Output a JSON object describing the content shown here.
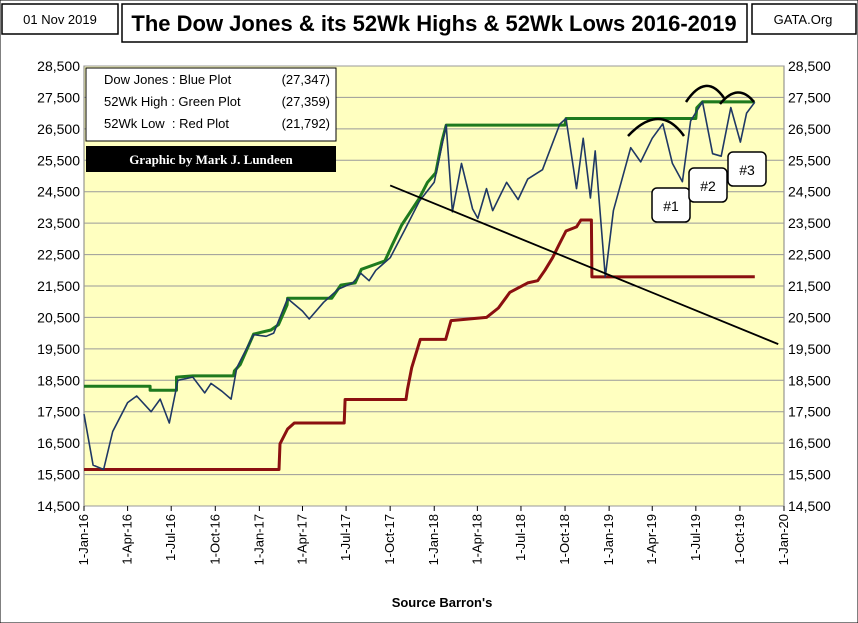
{
  "header": {
    "date": "01 Nov 2019",
    "title": "The Dow Jones & its 52Wk Highs & 52Wk Lows 2016-2019",
    "source": "GATA.Org"
  },
  "legend": {
    "rows": [
      {
        "label": "Dow Jones : Blue Plot",
        "value": "(27,347)"
      },
      {
        "label": "52Wk High : Green Plot",
        "value": "(27,359)"
      },
      {
        "label": "52Wk Low  : Red Plot",
        "value": "(21,792)"
      }
    ],
    "credit": "Graphic by Mark J. Lundeen"
  },
  "annotations": {
    "marker1": "#1",
    "marker2": "#2",
    "marker3": "#3"
  },
  "colors": {
    "plot_bg": "#ffffc0",
    "dow": "#1f3864",
    "high": "#1e7a1e",
    "low": "#8b1010",
    "trend": "#000000",
    "credit_bg": "#000000",
    "credit_fg": "#ffffff"
  },
  "chart_data": {
    "type": "line",
    "title": "The Dow Jones & its 52Wk Highs & 52Wk Lows 2016-2019",
    "xlabel": "Source Barron's",
    "ylabel": "",
    "ylim": [
      14500,
      28500
    ],
    "yticks": [
      "14,500",
      "15,500",
      "16,500",
      "17,500",
      "18,500",
      "19,500",
      "20,500",
      "21,500",
      "22,500",
      "23,500",
      "24,500",
      "25,500",
      "26,500",
      "27,500",
      "28,500"
    ],
    "xticks": [
      "1-Jan-16",
      "1-Apr-16",
      "1-Jul-16",
      "1-Oct-16",
      "1-Jan-17",
      "1-Apr-17",
      "1-Jul-17",
      "1-Oct-17",
      "1-Jan-18",
      "1-Apr-18",
      "1-Jul-18",
      "1-Oct-18",
      "1-Jan-19",
      "1-Apr-19",
      "1-Jul-19",
      "1-Oct-19",
      "1-Jan-20"
    ],
    "grid": true,
    "series": [
      {
        "name": "Dow Jones",
        "points": [
          [
            "2016-01-01",
            17425
          ],
          [
            "2016-01-20",
            15800
          ],
          [
            "2016-02-11",
            15660
          ],
          [
            "2016-03-01",
            16870
          ],
          [
            "2016-04-01",
            17790
          ],
          [
            "2016-04-20",
            18000
          ],
          [
            "2016-05-20",
            17500
          ],
          [
            "2016-06-08",
            17900
          ],
          [
            "2016-06-27",
            17140
          ],
          [
            "2016-07-15",
            18500
          ],
          [
            "2016-08-15",
            18600
          ],
          [
            "2016-09-09",
            18100
          ],
          [
            "2016-09-22",
            18400
          ],
          [
            "2016-10-15",
            18150
          ],
          [
            "2016-11-03",
            17900
          ],
          [
            "2016-11-15",
            18900
          ],
          [
            "2016-12-20",
            19950
          ],
          [
            "2017-01-15",
            19900
          ],
          [
            "2017-01-31",
            20000
          ],
          [
            "2017-03-01",
            21100
          ],
          [
            "2017-04-01",
            20700
          ],
          [
            "2017-04-15",
            20450
          ],
          [
            "2017-05-15",
            20980
          ],
          [
            "2017-06-15",
            21400
          ],
          [
            "2017-07-15",
            21600
          ],
          [
            "2017-08-01",
            21900
          ],
          [
            "2017-08-18",
            21670
          ],
          [
            "2017-09-01",
            22000
          ],
          [
            "2017-10-01",
            22400
          ],
          [
            "2017-11-01",
            23300
          ],
          [
            "2017-12-01",
            24200
          ],
          [
            "2018-01-01",
            24800
          ],
          [
            "2018-01-26",
            26620
          ],
          [
            "2018-02-08",
            23860
          ],
          [
            "2018-02-27",
            25400
          ],
          [
            "2018-03-22",
            23950
          ],
          [
            "2018-04-02",
            23650
          ],
          [
            "2018-04-20",
            24600
          ],
          [
            "2018-05-03",
            23900
          ],
          [
            "2018-06-01",
            24800
          ],
          [
            "2018-06-25",
            24250
          ],
          [
            "2018-07-15",
            24900
          ],
          [
            "2018-08-15",
            25200
          ],
          [
            "2018-09-20",
            26650
          ],
          [
            "2018-10-03",
            26830
          ],
          [
            "2018-10-25",
            24600
          ],
          [
            "2018-11-08",
            26200
          ],
          [
            "2018-11-23",
            24300
          ],
          [
            "2018-12-03",
            25800
          ],
          [
            "2018-12-24",
            21790
          ],
          [
            "2019-01-10",
            23900
          ],
          [
            "2019-02-15",
            25900
          ],
          [
            "2019-03-08",
            25450
          ],
          [
            "2019-04-01",
            26200
          ],
          [
            "2019-04-23",
            26660
          ],
          [
            "2019-05-13",
            25400
          ],
          [
            "2019-06-03",
            24820
          ],
          [
            "2019-06-20",
            26750
          ],
          [
            "2019-07-15",
            27360
          ],
          [
            "2019-08-05",
            25710
          ],
          [
            "2019-08-23",
            25630
          ],
          [
            "2019-09-12",
            27180
          ],
          [
            "2019-10-02",
            26080
          ],
          [
            "2019-10-15",
            27000
          ],
          [
            "2019-11-01",
            27347
          ]
        ]
      },
      {
        "name": "52Wk High",
        "points": [
          [
            "2016-01-01",
            18310
          ],
          [
            "2016-05-18",
            18310
          ],
          [
            "2016-05-18",
            18180
          ],
          [
            "2016-07-12",
            18180
          ],
          [
            "2016-07-12",
            18600
          ],
          [
            "2016-08-15",
            18640
          ],
          [
            "2016-11-08",
            18640
          ],
          [
            "2016-11-10",
            18800
          ],
          [
            "2016-11-22",
            19000
          ],
          [
            "2016-12-20",
            19970
          ],
          [
            "2017-01-25",
            20100
          ],
          [
            "2017-02-10",
            20270
          ],
          [
            "2017-02-28",
            20900
          ],
          [
            "2017-03-01",
            21110
          ],
          [
            "2017-06-01",
            21110
          ],
          [
            "2017-06-20",
            21530
          ],
          [
            "2017-07-20",
            21600
          ],
          [
            "2017-08-02",
            22030
          ],
          [
            "2017-09-20",
            22300
          ],
          [
            "2017-10-05",
            22800
          ],
          [
            "2017-10-25",
            23440
          ],
          [
            "2017-11-30",
            24270
          ],
          [
            "2017-12-18",
            24800
          ],
          [
            "2018-01-04",
            25100
          ],
          [
            "2018-01-17",
            26100
          ],
          [
            "2018-01-26",
            26620
          ],
          [
            "2018-10-01",
            26620
          ],
          [
            "2018-10-03",
            26830
          ],
          [
            "2019-07-01",
            26830
          ],
          [
            "2019-07-03",
            27170
          ],
          [
            "2019-07-15",
            27360
          ],
          [
            "2019-11-01",
            27359
          ]
        ]
      },
      {
        "name": "52Wk Low",
        "points": [
          [
            "2016-01-01",
            15660
          ],
          [
            "2017-02-11",
            15660
          ],
          [
            "2017-02-13",
            16480
          ],
          [
            "2017-03-01",
            16950
          ],
          [
            "2017-03-15",
            17140
          ],
          [
            "2017-06-27",
            17140
          ],
          [
            "2017-06-29",
            17890
          ],
          [
            "2017-11-03",
            17890
          ],
          [
            "2017-11-06",
            18200
          ],
          [
            "2017-11-15",
            18900
          ],
          [
            "2017-12-03",
            19800
          ],
          [
            "2018-01-25",
            19800
          ],
          [
            "2018-02-05",
            20400
          ],
          [
            "2018-04-20",
            20500
          ],
          [
            "2018-05-15",
            20800
          ],
          [
            "2018-06-08",
            21300
          ],
          [
            "2018-07-15",
            21600
          ],
          [
            "2018-08-05",
            21670
          ],
          [
            "2018-08-20",
            22000
          ],
          [
            "2018-09-05",
            22400
          ],
          [
            "2018-09-18",
            22800
          ],
          [
            "2018-10-03",
            23250
          ],
          [
            "2018-10-25",
            23380
          ],
          [
            "2018-11-03",
            23600
          ],
          [
            "2018-11-25",
            23600
          ],
          [
            "2018-11-26",
            21790
          ],
          [
            "2019-11-01",
            21792
          ]
        ]
      }
    ],
    "trendline": [
      [
        "2017-10-01",
        24700
      ],
      [
        "2019-12-20",
        19650
      ]
    ]
  }
}
